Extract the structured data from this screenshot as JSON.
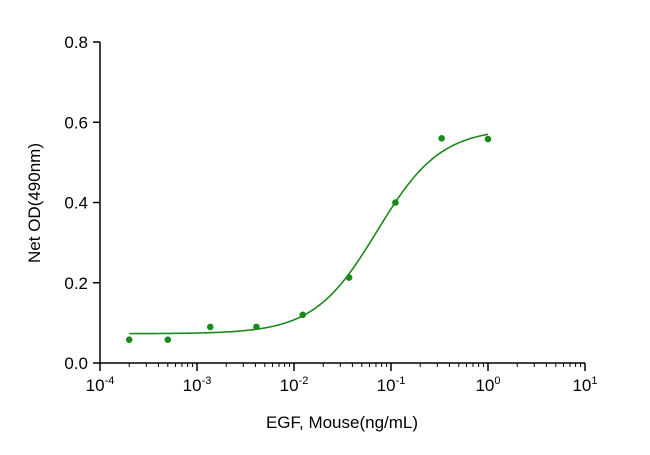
{
  "chart_data": {
    "type": "scatter",
    "title": "",
    "xlabel": "EGF, Mouse(ng/mL)",
    "ylabel": "Net OD(490nm)",
    "xscale": "log",
    "xlim": [
      0.0001,
      10
    ],
    "ylim": [
      0,
      0.8
    ],
    "x_ticks": [
      {
        "base": "10",
        "exp": "-4"
      },
      {
        "base": "10",
        "exp": "-3"
      },
      {
        "base": "10",
        "exp": "-2"
      },
      {
        "base": "10",
        "exp": "-1"
      },
      {
        "base": "10",
        "exp": "0"
      },
      {
        "base": "10",
        "exp": "1"
      }
    ],
    "y_ticks": [
      "0.0",
      "0.2",
      "0.4",
      "0.6",
      "0.8"
    ],
    "grid": false,
    "legend": "none",
    "color": "#1a8a1a",
    "points": [
      {
        "x": 0.0002,
        "y": 0.058
      },
      {
        "x": 0.0005,
        "y": 0.058
      },
      {
        "x": 0.00137,
        "y": 0.09
      },
      {
        "x": 0.0041,
        "y": 0.09
      },
      {
        "x": 0.0123,
        "y": 0.12
      },
      {
        "x": 0.037,
        "y": 0.213
      },
      {
        "x": 0.111,
        "y": 0.4
      },
      {
        "x": 0.333,
        "y": 0.56
      },
      {
        "x": 1.0,
        "y": 0.558
      }
    ],
    "fit": {
      "model": "4PL",
      "bottom": 0.073,
      "top": 0.585,
      "ec50": 0.072,
      "hill": 1.33,
      "x_range": [
        0.0002,
        1.0
      ]
    }
  }
}
